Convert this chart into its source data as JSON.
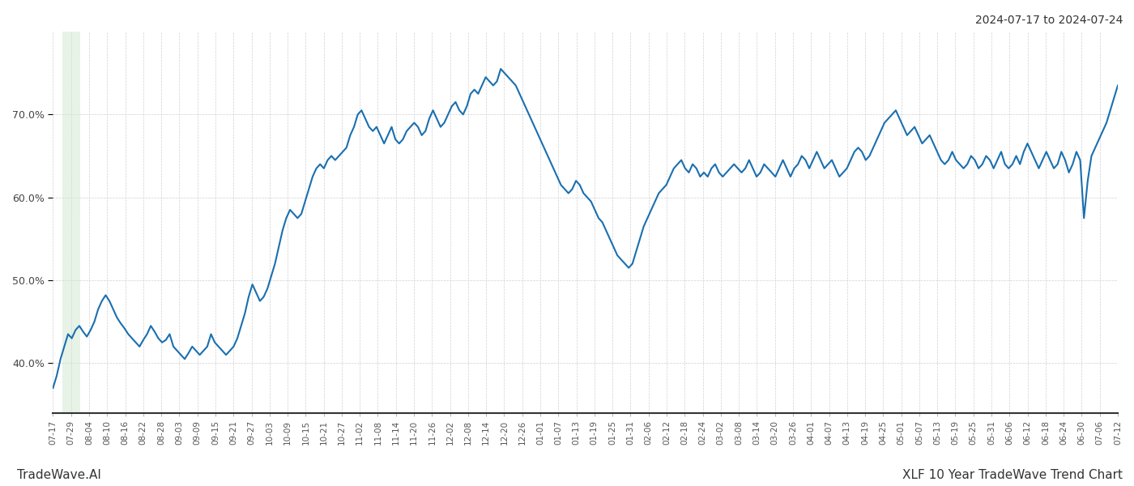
{
  "title_top_right": "2024-07-17 to 2024-07-24",
  "title_bottom_left": "TradeWave.AI",
  "title_bottom_right": "XLF 10 Year TradeWave Trend Chart",
  "background_color": "#ffffff",
  "line_color": "#1a6faf",
  "line_width": 1.5,
  "highlight_band_color": "#c8e6c9",
  "highlight_band_alpha": 0.45,
  "ylim_min": 34,
  "ylim_max": 80,
  "ytick_values": [
    40.0,
    50.0,
    60.0,
    70.0
  ],
  "xtick_labels": [
    "07-17",
    "07-29",
    "08-04",
    "08-10",
    "08-16",
    "08-22",
    "08-28",
    "09-03",
    "09-09",
    "09-15",
    "09-21",
    "09-27",
    "10-03",
    "10-09",
    "10-15",
    "10-21",
    "10-27",
    "11-02",
    "11-08",
    "11-14",
    "11-20",
    "11-26",
    "12-02",
    "12-08",
    "12-14",
    "12-20",
    "12-26",
    "01-01",
    "01-07",
    "01-13",
    "01-19",
    "01-25",
    "01-31",
    "02-06",
    "02-12",
    "02-18",
    "02-24",
    "03-02",
    "03-08",
    "03-14",
    "03-20",
    "03-26",
    "04-01",
    "04-07",
    "04-13",
    "04-19",
    "04-25",
    "05-01",
    "05-07",
    "05-13",
    "05-19",
    "05-25",
    "05-31",
    "06-06",
    "06-12",
    "06-18",
    "06-24",
    "06-30",
    "07-06",
    "07-12"
  ],
  "values": [
    37.0,
    38.5,
    40.5,
    42.0,
    43.5,
    43.0,
    44.0,
    44.5,
    43.8,
    43.2,
    44.0,
    45.0,
    46.5,
    47.5,
    48.2,
    47.5,
    46.5,
    45.5,
    44.8,
    44.2,
    43.5,
    43.0,
    42.5,
    42.0,
    42.8,
    43.5,
    44.5,
    43.8,
    43.0,
    42.5,
    42.8,
    43.5,
    42.0,
    41.5,
    41.0,
    40.5,
    41.2,
    42.0,
    41.5,
    41.0,
    41.5,
    42.0,
    43.5,
    42.5,
    42.0,
    41.5,
    41.0,
    41.5,
    42.0,
    43.0,
    44.5,
    46.0,
    48.0,
    49.5,
    48.5,
    47.5,
    48.0,
    49.0,
    50.5,
    52.0,
    54.0,
    56.0,
    57.5,
    58.5,
    58.0,
    57.5,
    58.0,
    59.5,
    61.0,
    62.5,
    63.5,
    64.0,
    63.5,
    64.5,
    65.0,
    64.5,
    65.0,
    65.5,
    66.0,
    67.5,
    68.5,
    70.0,
    70.5,
    69.5,
    68.5,
    68.0,
    68.5,
    67.5,
    66.5,
    67.5,
    68.5,
    67.0,
    66.5,
    67.0,
    68.0,
    68.5,
    69.0,
    68.5,
    67.5,
    68.0,
    69.5,
    70.5,
    69.5,
    68.5,
    69.0,
    70.0,
    71.0,
    71.5,
    70.5,
    70.0,
    71.0,
    72.5,
    73.0,
    72.5,
    73.5,
    74.5,
    74.0,
    73.5,
    74.0,
    75.5,
    75.0,
    74.5,
    74.0,
    73.5,
    72.5,
    71.5,
    70.5,
    69.5,
    68.5,
    67.5,
    66.5,
    65.5,
    64.5,
    63.5,
    62.5,
    61.5,
    61.0,
    60.5,
    61.0,
    62.0,
    61.5,
    60.5,
    60.0,
    59.5,
    58.5,
    57.5,
    57.0,
    56.0,
    55.0,
    54.0,
    53.0,
    52.5,
    52.0,
    51.5,
    52.0,
    53.5,
    55.0,
    56.5,
    57.5,
    58.5,
    59.5,
    60.5,
    61.0,
    61.5,
    62.5,
    63.5,
    64.0,
    64.5,
    63.5,
    63.0,
    64.0,
    63.5,
    62.5,
    63.0,
    62.5,
    63.5,
    64.0,
    63.0,
    62.5,
    63.0,
    63.5,
    64.0,
    63.5,
    63.0,
    63.5,
    64.5,
    63.5,
    62.5,
    63.0,
    64.0,
    63.5,
    63.0,
    62.5,
    63.5,
    64.5,
    63.5,
    62.5,
    63.5,
    64.0,
    65.0,
    64.5,
    63.5,
    64.5,
    65.5,
    64.5,
    63.5,
    64.0,
    64.5,
    63.5,
    62.5,
    63.0,
    63.5,
    64.5,
    65.5,
    66.0,
    65.5,
    64.5,
    65.0,
    66.0,
    67.0,
    68.0,
    69.0,
    69.5,
    70.0,
    70.5,
    69.5,
    68.5,
    67.5,
    68.0,
    68.5,
    67.5,
    66.5,
    67.0,
    67.5,
    66.5,
    65.5,
    64.5,
    64.0,
    64.5,
    65.5,
    64.5,
    64.0,
    63.5,
    64.0,
    65.0,
    64.5,
    63.5,
    64.0,
    65.0,
    64.5,
    63.5,
    64.5,
    65.5,
    64.0,
    63.5,
    64.0,
    65.0,
    64.0,
    65.5,
    66.5,
    65.5,
    64.5,
    63.5,
    64.5,
    65.5,
    64.5,
    63.5,
    64.0,
    65.5,
    64.5,
    63.0,
    64.0,
    65.5,
    64.5,
    57.5,
    62.0,
    65.0,
    66.0,
    67.0,
    68.0,
    69.0,
    70.5,
    72.0,
    73.5
  ]
}
